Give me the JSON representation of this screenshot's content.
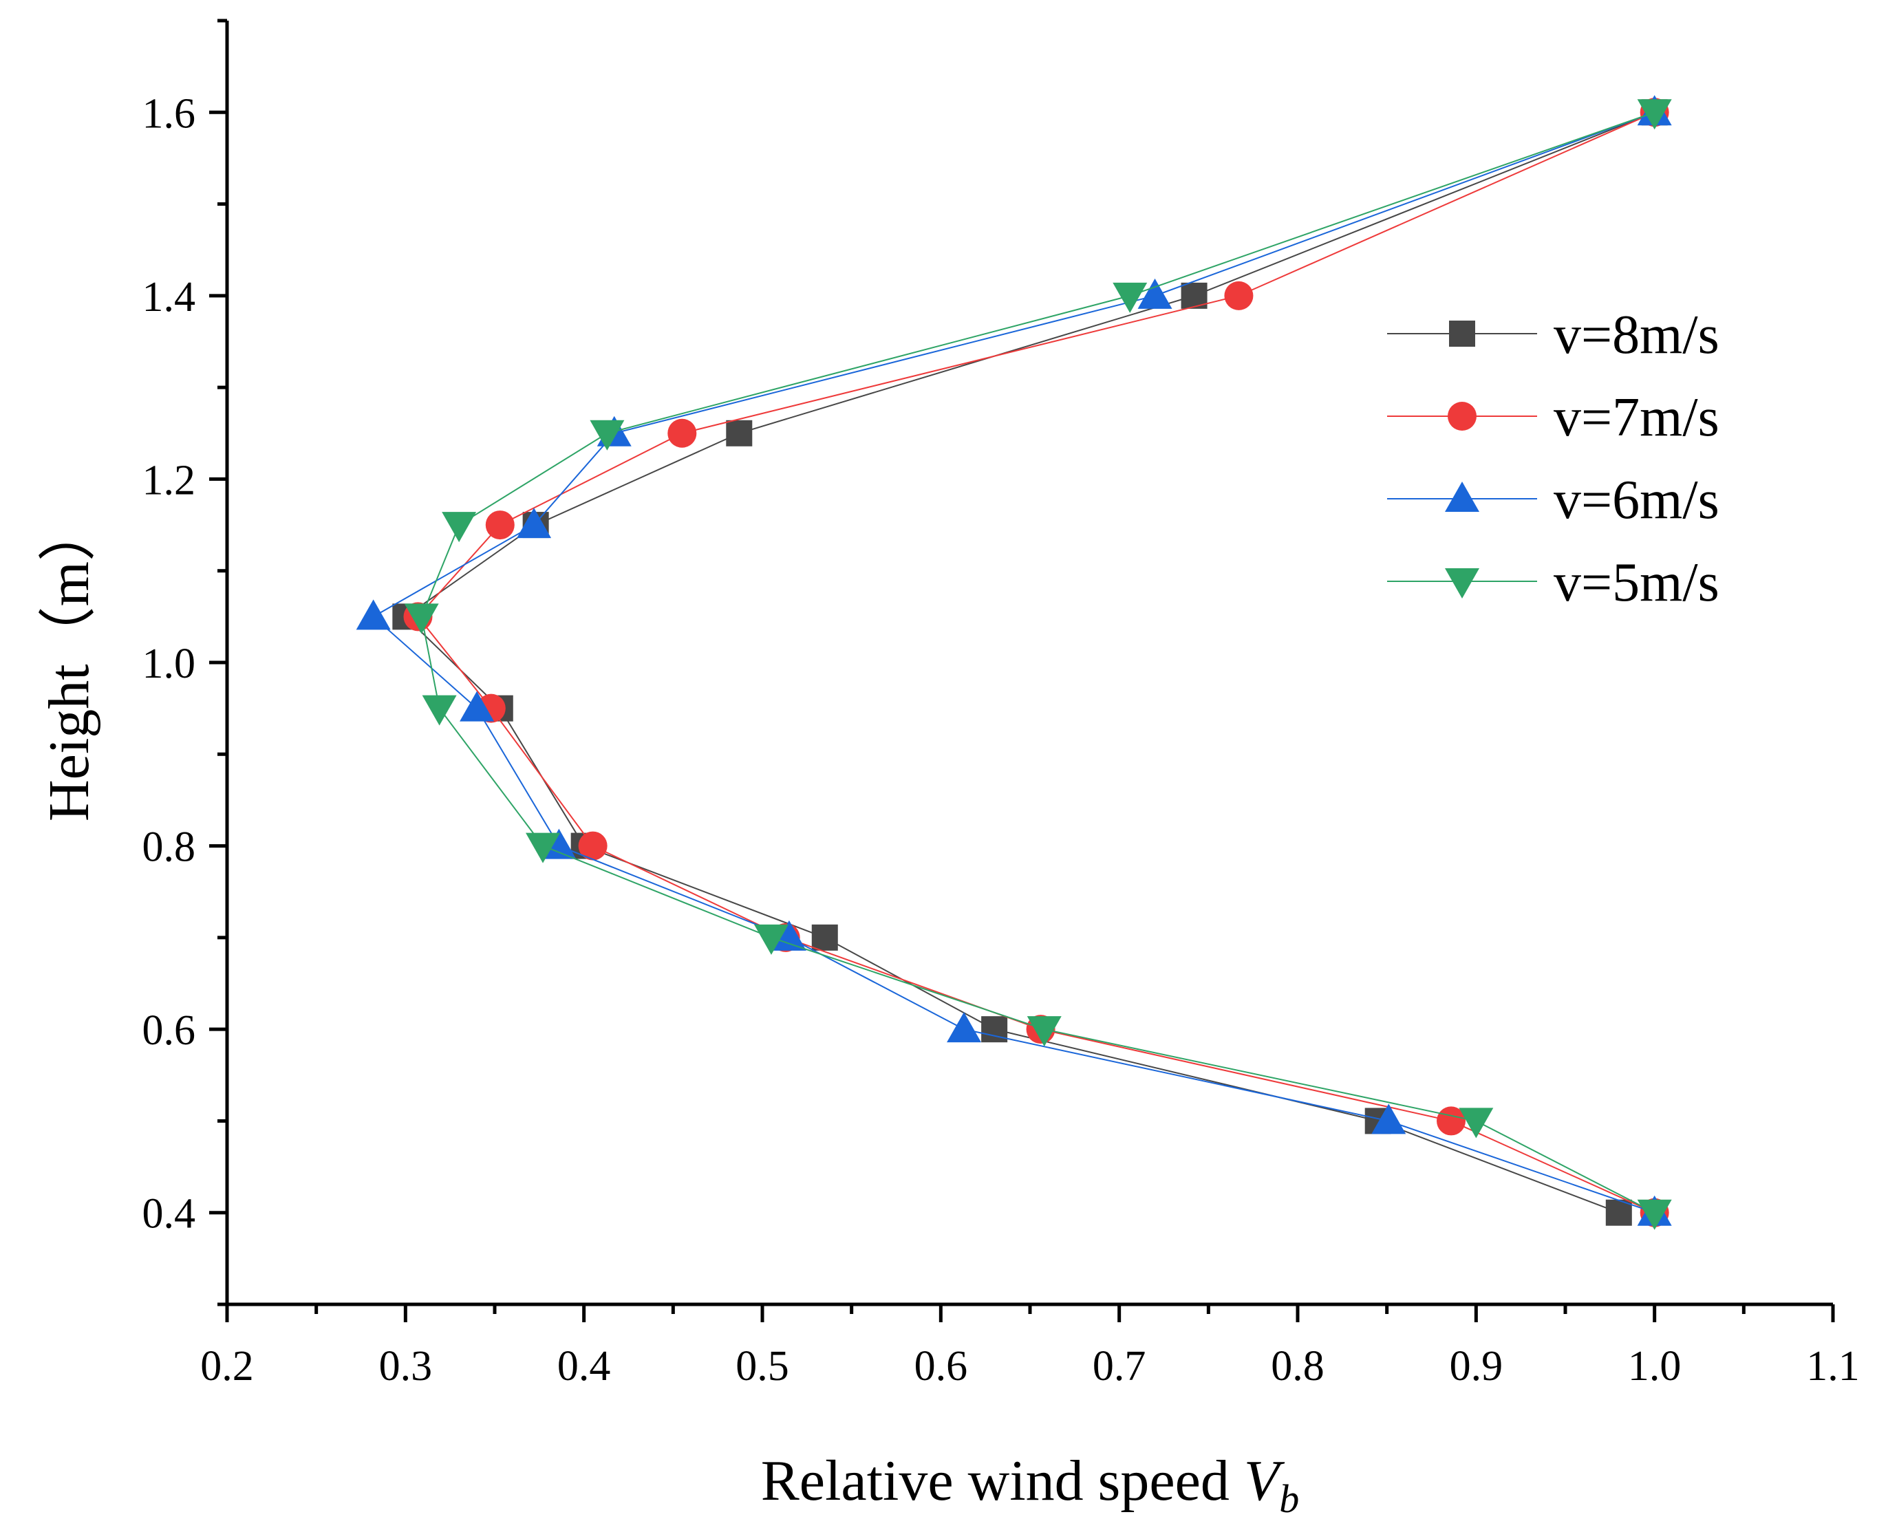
{
  "chart_data": {
    "type": "line",
    "xlabel": "Relative wind speed ",
    "xlabel_var": "V",
    "xlabel_sub": "b",
    "ylabel": "Height（m）",
    "xlim": [
      0.2,
      1.1
    ],
    "ylim": [
      0.3,
      1.7
    ],
    "x_ticks": [
      "0.2",
      "0.3",
      "0.4",
      "0.5",
      "0.6",
      "0.7",
      "0.8",
      "0.9",
      "1.0",
      "1.1"
    ],
    "y_ticks": [
      "0.4",
      "0.6",
      "0.8",
      "1.0",
      "1.2",
      "1.4",
      "1.6"
    ],
    "grid": false,
    "legend_position": "right",
    "heights": [
      0.4,
      0.5,
      0.6,
      0.7,
      0.8,
      0.95,
      1.05,
      1.15,
      1.25,
      1.4,
      1.6
    ],
    "series": [
      {
        "name": "v=8m/s",
        "marker": "square",
        "color": "#474747",
        "values": [
          0.98,
          0.845,
          0.63,
          0.535,
          0.4,
          0.353,
          0.3,
          0.373,
          0.487,
          0.742,
          1.0
        ]
      },
      {
        "name": "v=7m/s",
        "marker": "circle",
        "color": "#ee3a3a",
        "values": [
          1.0,
          0.886,
          0.656,
          0.513,
          0.405,
          0.348,
          0.307,
          0.353,
          0.455,
          0.767,
          1.0
        ]
      },
      {
        "name": "v=6m/s",
        "marker": "triangle-up",
        "color": "#1a66d9",
        "values": [
          1.0,
          0.851,
          0.613,
          0.515,
          0.386,
          0.34,
          0.282,
          0.372,
          0.417,
          0.72,
          1.0
        ]
      },
      {
        "name": "v=5m/s",
        "marker": "triangle-down",
        "color": "#2ea466",
        "values": [
          1.0,
          0.9,
          0.658,
          0.505,
          0.377,
          0.319,
          0.309,
          0.33,
          0.413,
          0.706,
          1.0
        ]
      }
    ]
  }
}
